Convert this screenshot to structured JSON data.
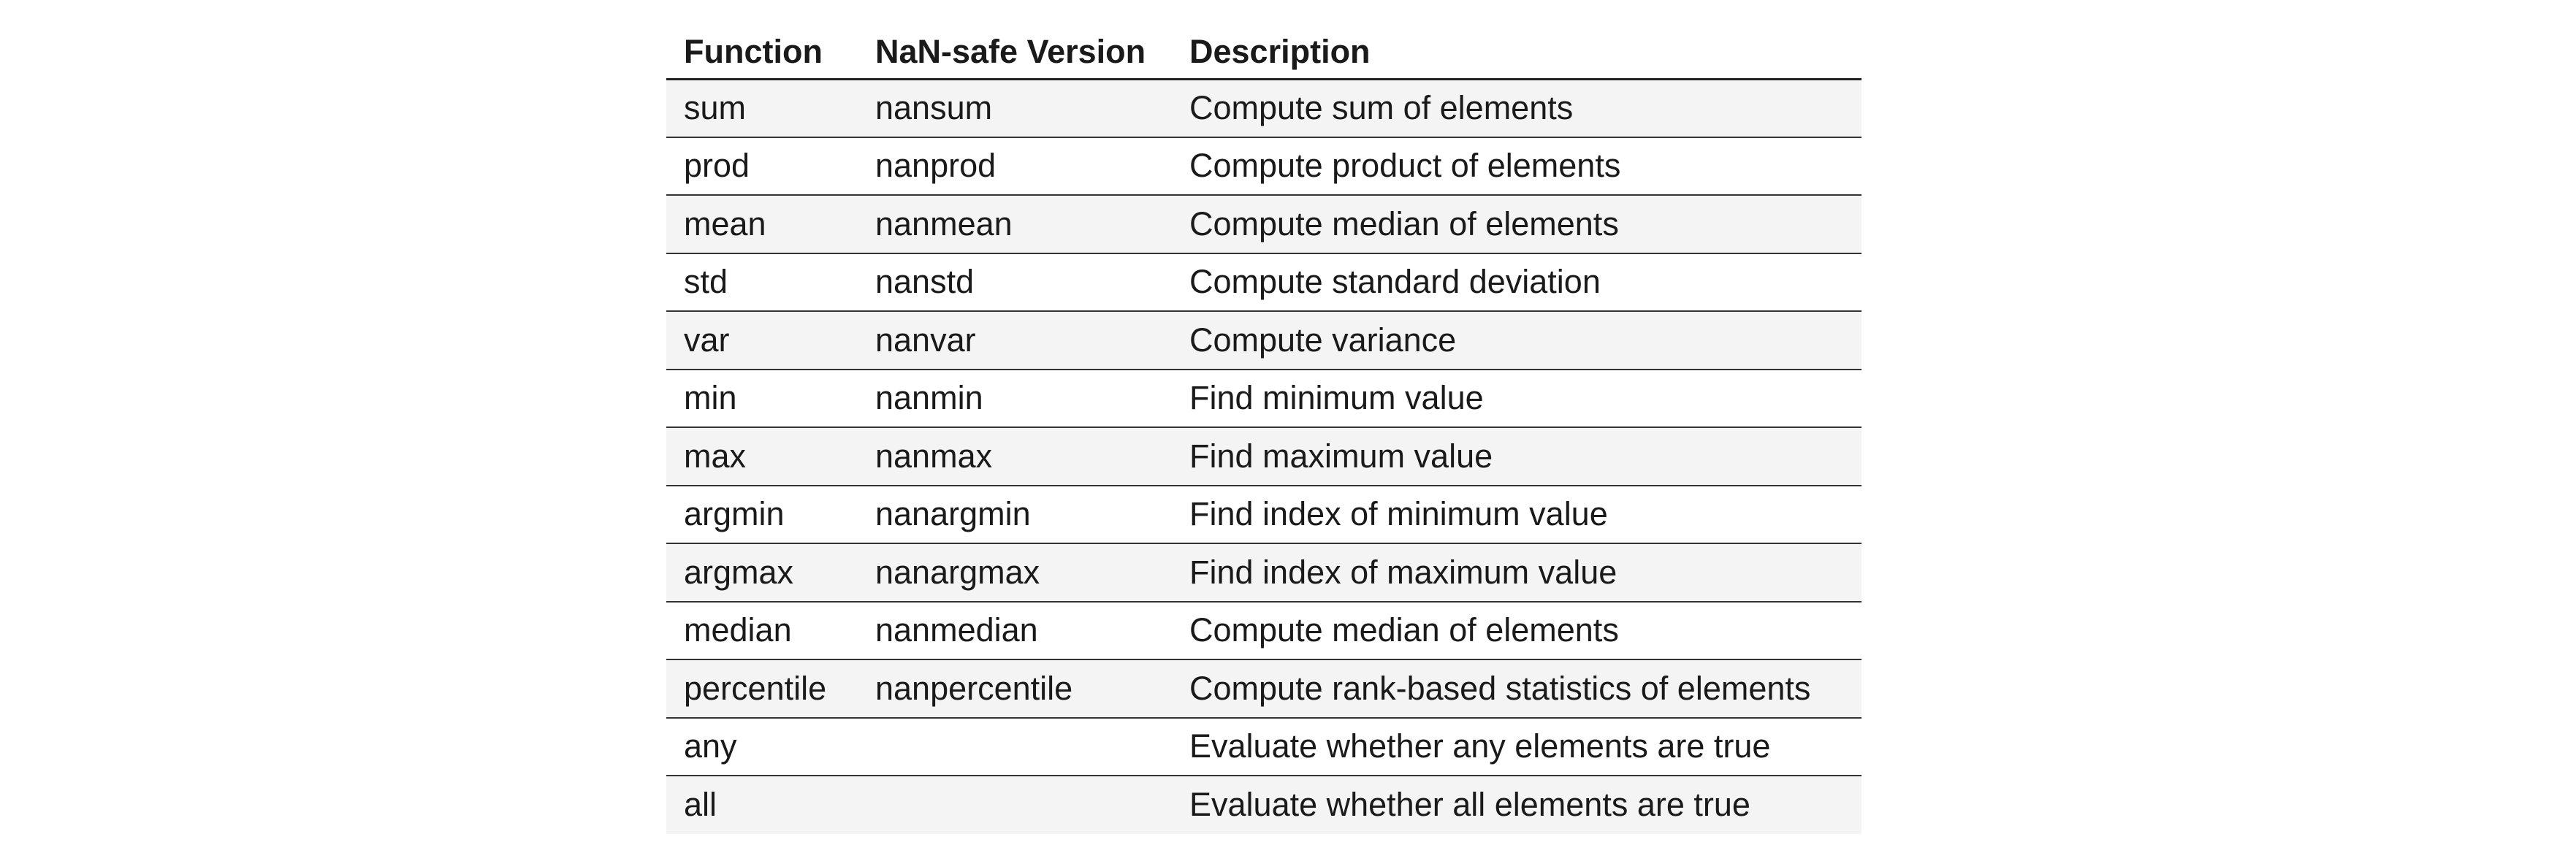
{
  "table": {
    "headers": [
      "Function",
      "NaN-safe Version",
      "Description"
    ],
    "rows": [
      [
        "sum",
        "nansum",
        "Compute sum of elements"
      ],
      [
        "prod",
        "nanprod",
        "Compute product of elements"
      ],
      [
        "mean",
        "nanmean",
        "Compute median of elements"
      ],
      [
        "std",
        "nanstd",
        "Compute standard deviation"
      ],
      [
        "var",
        "nanvar",
        "Compute variance"
      ],
      [
        "min",
        "nanmin",
        "Find minimum value"
      ],
      [
        "max",
        "nanmax",
        "Find maximum value"
      ],
      [
        "argmin",
        "nanargmin",
        "Find index of minimum value"
      ],
      [
        "argmax",
        "nanargmax",
        "Find index of maximum value"
      ],
      [
        "median",
        "nanmedian",
        "Compute median of elements"
      ],
      [
        "percentile",
        "nanpercentile",
        "Compute rank-based statistics of elements"
      ],
      [
        "any",
        "",
        "Evaluate whether any elements are true"
      ],
      [
        "all",
        "",
        "Evaluate whether all elements are true"
      ]
    ]
  }
}
